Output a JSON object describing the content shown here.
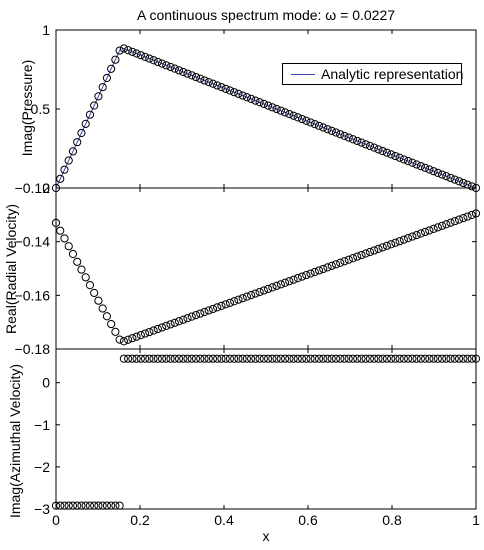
{
  "chart_data": [
    {
      "type": "scatter",
      "title": "A continuous spectrum mode: ω = 0.0227",
      "xlabel": "",
      "ylabel": "Imag(Pressure)",
      "xlim": [
        0,
        1
      ],
      "ylim": [
        0,
        1
      ],
      "ytick_labels": [
        "0",
        "0.5",
        "1"
      ],
      "legend": {
        "entries": [
          "Analytic representation"
        ],
        "placement": "top-right"
      },
      "series": [
        {
          "name": "Analytic representation",
          "style": "line",
          "color": "#3a4bbf",
          "x": [
            0,
            0.155,
            1
          ],
          "y": [
            0,
            0.89,
            0
          ]
        },
        {
          "style": "markers",
          "marker": "circle-open",
          "piecewise": {
            "x_break": 0.155,
            "y_at_0": 0,
            "y_at_break": 0.89,
            "y_at_1": 0
          },
          "points": 100
        }
      ]
    },
    {
      "type": "scatter",
      "xlabel": "",
      "ylabel": "Real(Radial Velocity)",
      "xlim": [
        0,
        1
      ],
      "ylim": [
        -0.18,
        -0.12
      ],
      "ytick_labels": [
        "−0.12",
        "−0.14",
        "−0.16",
        "−0.18"
      ],
      "series": [
        {
          "style": "markers",
          "marker": "circle-open",
          "piecewise": {
            "x_break": 0.155,
            "y_at_0": -0.133,
            "y_at_break": -0.1775,
            "y_at_1": -0.1295
          },
          "points": 100
        }
      ]
    },
    {
      "type": "scatter",
      "xlabel": "x",
      "ylabel": "Imag(Azimuthal Velocity)",
      "xlim": [
        0,
        1
      ],
      "ylim": [
        -3,
        0.8
      ],
      "xtick_labels": [
        "0",
        "0.2",
        "0.4",
        "0.6",
        "0.8",
        "1"
      ],
      "ytick_labels": [
        "−3",
        "−2",
        "−1",
        "0"
      ],
      "series": [
        {
          "style": "markers",
          "marker": "circle-open",
          "step": {
            "x_break": 0.16,
            "y_low": -2.92,
            "y_high": 0.57
          },
          "points": 100
        }
      ]
    }
  ]
}
